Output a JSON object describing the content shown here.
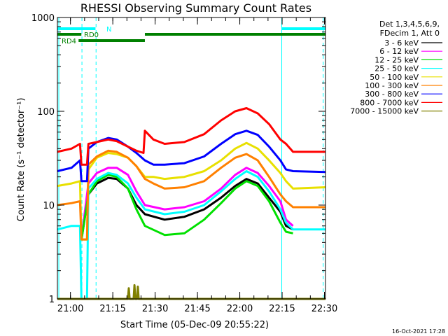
{
  "chart_data": {
    "type": "line",
    "title": "RHESSI Observing Summary Count Rates",
    "xlabel": "Start Time (05-Dec-09 20:55:22)",
    "ylabel": "Count Rate (s⁻¹ detector⁻¹)",
    "yscale": "log",
    "ylim": [
      1,
      1000
    ],
    "xlim": [
      0,
      95
    ],
    "x_unit": "minutes after 20:55:22",
    "x_ticks": [
      {
        "label": "21:00",
        "x": 4.63
      },
      {
        "label": "21:15",
        "x": 19.63
      },
      {
        "label": "21:30",
        "x": 34.63
      },
      {
        "label": "21:45",
        "x": 49.63
      },
      {
        "label": "22:00",
        "x": 64.63
      },
      {
        "label": "22:15",
        "x": 79.63
      },
      {
        "label": "22:30",
        "x": 94.63
      }
    ],
    "y_ticks": [
      {
        "label": "1",
        "y": 1
      },
      {
        "label": "10",
        "y": 10
      },
      {
        "label": "100",
        "y": 100
      },
      {
        "label": "1000",
        "y": 1000
      }
    ],
    "legend_header": [
      "Det 1,3,4,5,6,9,",
      "FDecim 1, Att 0"
    ],
    "legend_position": "right",
    "series": [
      {
        "name": "3 - 6 keV",
        "color": "#000000",
        "points": [
          [
            8.5,
            4.3
          ],
          [
            11,
            13
          ],
          [
            14,
            17
          ],
          [
            18,
            19.5
          ],
          [
            21,
            19
          ],
          [
            25,
            15
          ],
          [
            28,
            10
          ],
          [
            31,
            8
          ],
          [
            38,
            7
          ],
          [
            45,
            7.5
          ],
          [
            52,
            9
          ],
          [
            58,
            12
          ],
          [
            63,
            16
          ],
          [
            67,
            19
          ],
          [
            71,
            17
          ],
          [
            75,
            12
          ],
          [
            79,
            8.5
          ],
          [
            81,
            6
          ],
          [
            83.5,
            5.5
          ]
        ]
      },
      {
        "name": "6 - 12 keV",
        "color": "#ff00ff",
        "points": [
          [
            8.5,
            4.3
          ],
          [
            11,
            17
          ],
          [
            14,
            22
          ],
          [
            18,
            25
          ],
          [
            21,
            25
          ],
          [
            25,
            21
          ],
          [
            28,
            14
          ],
          [
            31,
            10
          ],
          [
            38,
            9
          ],
          [
            45,
            9.5
          ],
          [
            52,
            11
          ],
          [
            58,
            15
          ],
          [
            63,
            21
          ],
          [
            67,
            25
          ],
          [
            71,
            22
          ],
          [
            75,
            16
          ],
          [
            79,
            11
          ],
          [
            81,
            7
          ],
          [
            83.5,
            6
          ]
        ]
      },
      {
        "name": "12 - 25 keV",
        "color": "#00e000",
        "points": [
          [
            8.5,
            4.2
          ],
          [
            11,
            13
          ],
          [
            14,
            18
          ],
          [
            18,
            21
          ],
          [
            21,
            20
          ],
          [
            25,
            15
          ],
          [
            28,
            9
          ],
          [
            31,
            6
          ],
          [
            38,
            4.8
          ],
          [
            45,
            5
          ],
          [
            52,
            7
          ],
          [
            58,
            10.5
          ],
          [
            63,
            15
          ],
          [
            67,
            18
          ],
          [
            71,
            16
          ],
          [
            75,
            11
          ],
          [
            79,
            6.5
          ],
          [
            81,
            5.2
          ],
          [
            83.5,
            5
          ]
        ]
      },
      {
        "name": "25 - 50 keV",
        "color": "#00ffff",
        "points": [
          [
            0,
            5.5
          ],
          [
            5,
            6
          ],
          [
            8,
            6
          ],
          [
            8.5,
            1
          ],
          [
            10.5,
            1
          ],
          [
            11,
            15
          ],
          [
            14,
            19
          ],
          [
            18,
            22
          ],
          [
            21,
            21
          ],
          [
            25,
            17
          ],
          [
            28,
            12
          ],
          [
            31,
            9
          ],
          [
            38,
            8
          ],
          [
            45,
            8.5
          ],
          [
            52,
            10
          ],
          [
            58,
            14
          ],
          [
            63,
            19
          ],
          [
            67,
            23
          ],
          [
            71,
            20
          ],
          [
            75,
            14
          ],
          [
            79,
            9
          ],
          [
            81,
            6.5
          ],
          [
            83.5,
            5.5
          ],
          [
            95,
            5.5
          ]
        ]
      },
      {
        "name": "50 - 100 keV",
        "color": "#e8e000",
        "points": [
          [
            0,
            16
          ],
          [
            5,
            17
          ],
          [
            8,
            18
          ],
          [
            8.5,
            4.3
          ],
          [
            10.5,
            4.3
          ],
          [
            11,
            24
          ],
          [
            14,
            32
          ],
          [
            18,
            36
          ],
          [
            21,
            35
          ],
          [
            25,
            32
          ],
          [
            28,
            26
          ],
          [
            31,
            20
          ],
          [
            34,
            20
          ],
          [
            38,
            19
          ],
          [
            45,
            20
          ],
          [
            52,
            23
          ],
          [
            58,
            30
          ],
          [
            63,
            40
          ],
          [
            67,
            46
          ],
          [
            71,
            40
          ],
          [
            75,
            30
          ],
          [
            79,
            22
          ],
          [
            81,
            18
          ],
          [
            83.5,
            15
          ],
          [
            95,
            15.5
          ]
        ]
      },
      {
        "name": "100 - 300 keV",
        "color": "#ff8000",
        "points": [
          [
            0,
            10
          ],
          [
            5,
            10.5
          ],
          [
            8,
            11
          ],
          [
            8.5,
            4.3
          ],
          [
            10.5,
            4.3
          ],
          [
            11,
            27
          ],
          [
            14,
            33
          ],
          [
            18,
            38
          ],
          [
            21,
            37
          ],
          [
            25,
            32
          ],
          [
            28,
            26
          ],
          [
            31,
            19
          ],
          [
            34,
            17
          ],
          [
            38,
            15
          ],
          [
            45,
            15.5
          ],
          [
            52,
            18
          ],
          [
            58,
            25
          ],
          [
            63,
            32
          ],
          [
            67,
            35
          ],
          [
            71,
            30
          ],
          [
            75,
            20
          ],
          [
            79,
            13
          ],
          [
            81,
            11
          ],
          [
            83.5,
            9.5
          ],
          [
            95,
            9.5
          ]
        ]
      },
      {
        "name": "300 - 800 keV",
        "color": "#0000ff",
        "points": [
          [
            0,
            23
          ],
          [
            5,
            25
          ],
          [
            8,
            30
          ],
          [
            8.5,
            18
          ],
          [
            10.5,
            18
          ],
          [
            11,
            40
          ],
          [
            14,
            47
          ],
          [
            18,
            52
          ],
          [
            21,
            50
          ],
          [
            25,
            42
          ],
          [
            28,
            36
          ],
          [
            31,
            30
          ],
          [
            34,
            27
          ],
          [
            38,
            27
          ],
          [
            45,
            28
          ],
          [
            52,
            33
          ],
          [
            58,
            45
          ],
          [
            63,
            57
          ],
          [
            67,
            62
          ],
          [
            71,
            56
          ],
          [
            75,
            42
          ],
          [
            79,
            30
          ],
          [
            81,
            24
          ],
          [
            83.5,
            23
          ],
          [
            95,
            22.5
          ]
        ]
      },
      {
        "name": "800 - 7000 keV",
        "color": "#ff0000",
        "points": [
          [
            0,
            37
          ],
          [
            5,
            40
          ],
          [
            8,
            45
          ],
          [
            8.5,
            27
          ],
          [
            10.5,
            27
          ],
          [
            11,
            45
          ],
          [
            14,
            47
          ],
          [
            18,
            50
          ],
          [
            21,
            48
          ],
          [
            25,
            42
          ],
          [
            28,
            38
          ],
          [
            30.5,
            36
          ],
          [
            31,
            62
          ],
          [
            34,
            50
          ],
          [
            38,
            45
          ],
          [
            45,
            47
          ],
          [
            52,
            57
          ],
          [
            58,
            80
          ],
          [
            63,
            100
          ],
          [
            67,
            108
          ],
          [
            71,
            95
          ],
          [
            75,
            73
          ],
          [
            79,
            50
          ],
          [
            81,
            45
          ],
          [
            83.5,
            37
          ],
          [
            95,
            37
          ]
        ]
      },
      {
        "name": "7000 - 15000 keV",
        "color": "#808000",
        "points": [
          [
            0,
            1
          ],
          [
            25,
            1
          ],
          [
            25.3,
            1.3
          ],
          [
            25.6,
            1
          ],
          [
            27,
            1
          ],
          [
            27.3,
            1.4
          ],
          [
            27.6,
            1
          ],
          [
            28.2,
            1
          ],
          [
            28.5,
            1.35
          ],
          [
            28.8,
            1
          ],
          [
            95,
            1
          ]
        ]
      }
    ],
    "vertical_lines": [
      {
        "x": 0.5,
        "style": "solid"
      },
      {
        "x": 8.7,
        "style": "dashed"
      },
      {
        "x": 13.7,
        "style": "dashed"
      },
      {
        "x": 79.5,
        "style": "solid"
      },
      {
        "x": 94.2,
        "style": "dashed"
      }
    ],
    "flag_bars": [
      {
        "label": "N",
        "color": "#00ffff",
        "row": 1,
        "segments": [
          [
            0,
            13.5
          ],
          [
            79.5,
            95
          ]
        ]
      },
      {
        "label": "RD0",
        "color": "#008000",
        "row": 2,
        "segments": [
          [
            0,
            8.5
          ],
          [
            31,
            95
          ]
        ]
      },
      {
        "label": "RD4",
        "color": "#008000",
        "row": 3,
        "segments": [
          [
            7.5,
            31
          ]
        ]
      }
    ],
    "timestamp": "16-Oct-2021 17:28"
  }
}
